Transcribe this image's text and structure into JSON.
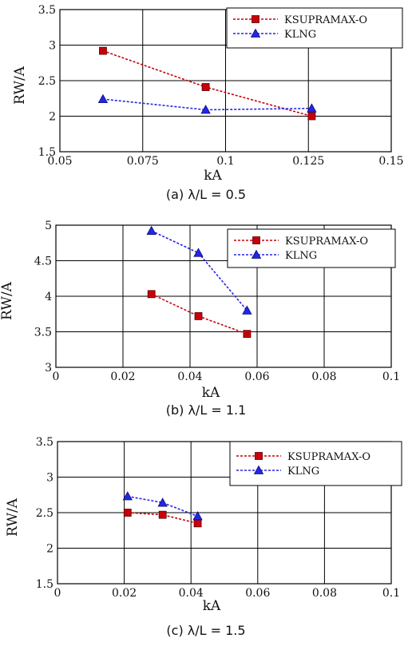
{
  "chart_data": [
    {
      "type": "line",
      "caption": "(a) λ/L = 0.5",
      "xlabel": "kA",
      "ylabel": "RW/A",
      "xlim": [
        0.05,
        0.15
      ],
      "ylim": [
        1.5,
        3.5
      ],
      "xticks": [
        0.05,
        0.075,
        0.1,
        0.125,
        0.15
      ],
      "xtick_labels": [
        "0.05",
        "0.075",
        "0.1",
        "0.125",
        "0.15"
      ],
      "yticks": [
        1.5,
        2,
        2.5,
        3,
        3.5
      ],
      "ytick_labels": [
        "1.5",
        "2",
        "2.5",
        "3",
        "3.5"
      ],
      "grid": true,
      "legend_position": "top-right",
      "series": [
        {
          "name": "KSUPRAMAX-O",
          "color": "#c8000a",
          "marker": "square",
          "x": [
            0.063,
            0.094,
            0.126
          ],
          "y": [
            2.92,
            2.41,
            2.0
          ]
        },
        {
          "name": "KLNG",
          "color": "#2525e6",
          "marker": "triangle",
          "x": [
            0.063,
            0.094,
            0.126
          ],
          "y": [
            2.24,
            2.09,
            2.11
          ]
        }
      ]
    },
    {
      "type": "line",
      "caption": "(b) λ/L = 1.1",
      "xlabel": "kA",
      "ylabel": "RW/A",
      "xlim": [
        0,
        0.1
      ],
      "ylim": [
        3,
        5
      ],
      "xticks": [
        0,
        0.02,
        0.04,
        0.06,
        0.08,
        0.1
      ],
      "xtick_labels": [
        "0",
        "0.02",
        "0.04",
        "0.06",
        "0.08",
        "0.1"
      ],
      "yticks": [
        3,
        3.5,
        4,
        4.5,
        5
      ],
      "ytick_labels": [
        "3",
        "3.5",
        "4",
        "4.5",
        "5"
      ],
      "grid": true,
      "legend_position": "top-right",
      "series": [
        {
          "name": "KSUPRAMAX-O",
          "color": "#c8000a",
          "marker": "square",
          "x": [
            0.0285,
            0.0425,
            0.057
          ],
          "y": [
            4.03,
            3.72,
            3.47
          ]
        },
        {
          "name": "KLNG",
          "color": "#2525e6",
          "marker": "triangle",
          "x": [
            0.0285,
            0.0425,
            0.057
          ],
          "y": [
            4.92,
            4.61,
            3.8
          ]
        }
      ]
    },
    {
      "type": "line",
      "caption": "(c) λ/L = 1.5",
      "xlabel": "kA",
      "ylabel": "RW/A",
      "xlim": [
        0,
        0.1
      ],
      "ylim": [
        1.5,
        3.5
      ],
      "xticks": [
        0,
        0.02,
        0.04,
        0.06,
        0.08,
        0.1
      ],
      "xtick_labels": [
        "0",
        "0.02",
        "0.04",
        "0.06",
        "0.08",
        "0.1"
      ],
      "yticks": [
        1.5,
        2,
        2.5,
        3,
        3.5
      ],
      "ytick_labels": [
        "1.5",
        "2",
        "2.5",
        "3",
        "3.5"
      ],
      "grid": true,
      "legend_position": "top-right",
      "series": [
        {
          "name": "KSUPRAMAX-O",
          "color": "#c8000a",
          "marker": "square",
          "x": [
            0.021,
            0.0315,
            0.042
          ],
          "y": [
            2.5,
            2.47,
            2.35
          ]
        },
        {
          "name": "KLNG",
          "color": "#2525e6",
          "marker": "triangle",
          "x": [
            0.021,
            0.0315,
            0.042
          ],
          "y": [
            2.73,
            2.64,
            2.45
          ]
        }
      ]
    }
  ]
}
